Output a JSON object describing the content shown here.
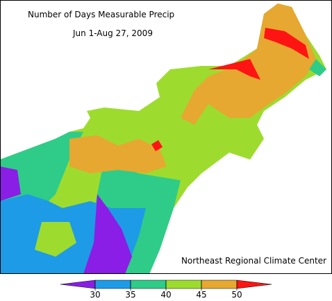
{
  "map": {
    "title": "Number of Days Measurable Precip",
    "subtitle": "Jun 1-Aug 27, 2009",
    "credit": "Northeast Regional Climate Center"
  },
  "legend": {
    "ticks": [
      30,
      35,
      40,
      45,
      50
    ],
    "colors": [
      "#8a1ee6",
      "#1e9be6",
      "#2ecc88",
      "#9ddc2e",
      "#e6a830",
      "#ff1414"
    ]
  }
}
